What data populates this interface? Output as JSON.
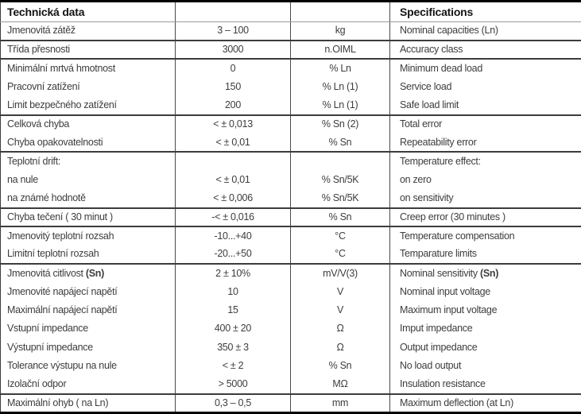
{
  "colors": {
    "text": "#3d3d3d",
    "header_text": "#141414",
    "outer_border": "#000000",
    "group_line": "#3c3c3c",
    "header_line": "#9a9a9a",
    "background": "#ffffff"
  },
  "table": {
    "header": {
      "left_title": "Technická data",
      "right_title": "Specifications"
    },
    "groups": [
      {
        "rows": [
          {
            "cz": "Jmenovitá zátěž",
            "val": "3 – 100",
            "unit": "kg",
            "en": "Nominal capacities (Ln)"
          }
        ]
      },
      {
        "rows": [
          {
            "cz": "Třída přesnosti",
            "val": "3000",
            "unit": "n.OIML",
            "en": "Accuracy class"
          }
        ]
      },
      {
        "rows": [
          {
            "cz": "Minimální mrtvá hmotnost",
            "val": "0",
            "unit": "% Ln",
            "en": "Minimum dead load"
          },
          {
            "cz": "Pracovní zatížení",
            "val": "150",
            "unit": "% Ln (1)",
            "en": "Service load"
          },
          {
            "cz": "Limit bezpečného zatížení",
            "val": "200",
            "unit": "% Ln (1)",
            "en": "Safe load limit"
          }
        ]
      },
      {
        "rows": [
          {
            "cz": "Celková chyba",
            "val": "< ± 0,013",
            "unit": "% Sn (2)",
            "en": "Total error"
          },
          {
            "cz": "Chyba opakovatelnosti",
            "val": "< ± 0,01",
            "unit": "% Sn",
            "en": "Repeatability error"
          }
        ]
      },
      {
        "rows": [
          {
            "cz": "Teplotní drift:",
            "val": "",
            "unit": "",
            "en": "Temperature effect:"
          },
          {
            "cz": "na nule",
            "val": "< ± 0,01",
            "unit": "% Sn/5K",
            "en": "on zero"
          },
          {
            "cz": "na známé hodnotě",
            "val": "< ± 0,006",
            "unit": "% Sn/5K",
            "en": "on sensitivity"
          }
        ]
      },
      {
        "rows": [
          {
            "cz": "Chyba tečení ( 30 minut )",
            "val": "-< ± 0,016",
            "unit": "% Sn",
            "en": "Creep error (30 minutes )"
          }
        ]
      },
      {
        "rows": [
          {
            "cz": "Jmenovitý teplotní rozsah",
            "val": "-10...+40",
            "unit": "°C",
            "en": "Temperature compensation"
          },
          {
            "cz": "Limitní teplotní rozsah",
            "val": "-20...+50",
            "unit": "°C",
            "en": "Temparature limits"
          }
        ]
      },
      {
        "rows": [
          {
            "cz": "Jmenovitá citlivost ",
            "cz_bold": "(Sn)",
            "val": "2 ± 10%",
            "unit": "mV/V(3)",
            "en": "Nominal sensitivity ",
            "en_bold": "(Sn)"
          },
          {
            "cz": "Jmenovité napájecí napětí",
            "val": "10",
            "unit": "V",
            "en": "Nominal input voltage"
          },
          {
            "cz": "Maximální napájecí napětí",
            "val": "15",
            "unit": "V",
            "en": "Maximum input voltage"
          },
          {
            "cz": "Vstupní impedance",
            "val": "400 ± 20",
            "unit": "Ω",
            "en": "Imput impedance"
          },
          {
            "cz": "Výstupní impedance",
            "val": "350 ± 3",
            "unit": "Ω",
            "en": "Output impedance"
          },
          {
            "cz": "Tolerance výstupu na nule",
            "val": "< ± 2",
            "unit": "% Sn",
            "en": "No load output"
          },
          {
            "cz": "Izolační odpor",
            "val": "> 5000",
            "unit": "MΩ",
            "en": "Insulation resistance"
          }
        ]
      },
      {
        "rows": [
          {
            "cz": "Maximální ohyb ( na Ln)",
            "val": "0,3 – 0,5",
            "unit": "mm",
            "en": "Maximum deflection (at Ln)"
          }
        ]
      }
    ]
  }
}
